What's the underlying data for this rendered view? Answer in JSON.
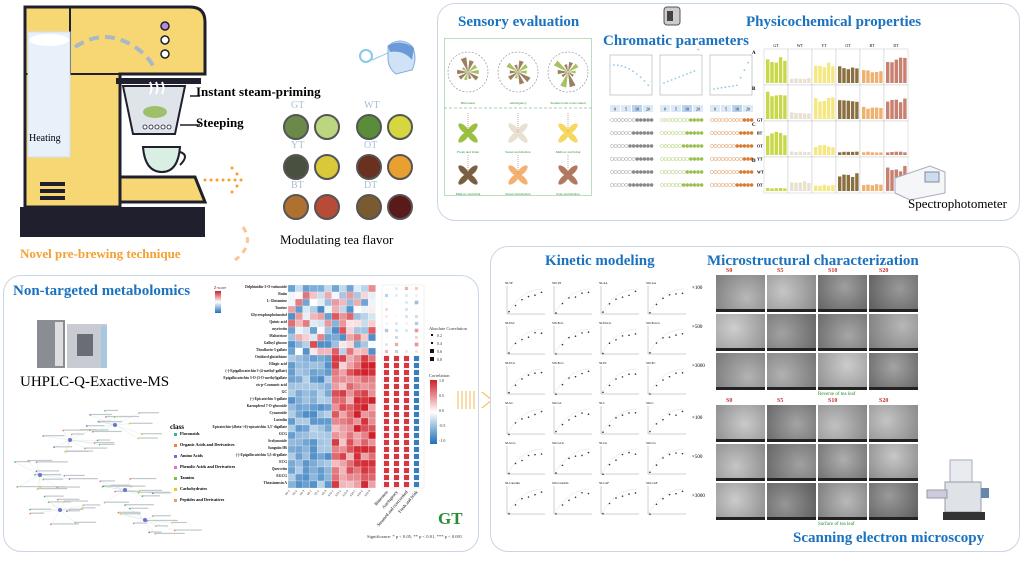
{
  "brewing": {
    "heating_label": "Heating",
    "steam_label": "Instant steam-priming",
    "steeping_label": "Steeping",
    "technique_label": "Novel pre-brewing technique",
    "colors": {
      "machine": "#f7d774",
      "outline": "#1f1f2e",
      "accent": "#f5a030"
    }
  },
  "teas": {
    "caption": "Modulating tea flavor",
    "items": [
      {
        "code": "GT",
        "leaf": "#6b8a4a",
        "liquor": "#bcd680"
      },
      {
        "code": "WT",
        "leaf": "#5a8d3a",
        "liquor": "#d6d640"
      },
      {
        "code": "YT",
        "leaf": "#4a5040",
        "liquor": "#d9c83a"
      },
      {
        "code": "OT",
        "leaf": "#6a3020",
        "liquor": "#e8a030"
      },
      {
        "code": "BT",
        "leaf": "#b07030",
        "liquor": "#b84a38"
      },
      {
        "code": "DT",
        "leaf": "#7a5a30",
        "liquor": "#5a1a1a"
      }
    ]
  },
  "sensory": {
    "title": "Sensory evaluation",
    "radar_labels": [
      "Bitterness",
      "Astringency",
      "Steamed and overcooked"
    ],
    "flower_labels": [
      "Fresh and brisk",
      "Sweet and mellow",
      "Mellow and brisk",
      "Mellow and brisk",
      "Sweet and mellow",
      "Sour and mellow"
    ]
  },
  "chromatic": {
    "title": "Chromatic parameters",
    "times": [
      "0",
      "5",
      "10",
      "20"
    ],
    "rows": [
      "GT",
      "BT",
      "OT",
      "YT",
      "WT",
      "DT"
    ]
  },
  "physicochemical": {
    "title": "Physicochemical properties",
    "teas": [
      "GT",
      "WT",
      "YT",
      "OT",
      "BT",
      "DT"
    ],
    "panels": [
      "A",
      "B",
      "C",
      "D"
    ],
    "instrument": "Spectrophotometer"
  },
  "metabolomics": {
    "title": "Non-targeted metabolomics",
    "instrument": "UHPLC-Q-Exactive-MS",
    "class_title": "class",
    "classes": [
      {
        "name": "Flavonoids",
        "color": "#3cb08a"
      },
      {
        "name": "Organic Acids and Derivatives",
        "color": "#f08040"
      },
      {
        "name": "Amino Acids",
        "color": "#7070d0"
      },
      {
        "name": "Phenolic Acids and Derivatives",
        "color": "#e070c0"
      },
      {
        "name": "Tannins",
        "color": "#80c040"
      },
      {
        "name": "Carbohydrates",
        "color": "#f0c020"
      },
      {
        "name": "Peptides and Derivatives",
        "color": "#e0a060"
      }
    ],
    "metabolites": [
      "Delphinidin-3-O-rutinoside",
      "Rutin",
      "L-Glutamine",
      "Taurine",
      "Glycerophosphoinositol",
      "Quinic acid",
      "myricetin",
      "Maltotriose",
      "Galloyl glucose",
      "Theaflavin-3-gallate",
      "Oxidized glutathione",
      "Ellagic acid",
      "(-)-Epigallocatechin 3-(4-methyl-gallate)",
      "Epigallocatechin 3-O-(3-O-methyl)gallate",
      "cis-p-Coumaric acid",
      "GC",
      "(-)-Epicatechin 3-gallate",
      "Kaempferol 7-O-glucoside",
      "Cynaroside",
      "Luteolin",
      "Epicatechin-(4beta->6)-epicatechin 3,3'-digallate",
      "GCG",
      "Scolymoside",
      "Sanguiin H6",
      "(-)-Epigallocatechin 3,5-di-gallate",
      "ECG",
      "Quercetin",
      "EGCG",
      "Theasinensin A"
    ],
    "attributes": [
      "Bitterness",
      "Astringency",
      "Steamed and overcooked",
      "Fresh and brisk"
    ],
    "zscore_label": "Z-score",
    "abs_corr_title": "Absolute Correlation",
    "abs_corr_values": [
      "0.2",
      "0.4",
      "0.6",
      "0.8"
    ],
    "corr_title": "Correlation",
    "corr_ticks": [
      "1.0",
      "0.5",
      "0.0",
      "-0.5",
      "-1.0"
    ],
    "tea_tag": "GT",
    "significance": "Significance: * p < 0.05, ** p < 0.01, *** p < 0.001"
  },
  "kinetic": {
    "title": "Kinetic modeling",
    "plots": [
      "S0-TP",
      "S20-TP",
      "S0-AA",
      "S20-AA",
      "S0-EGC",
      "S20-EGC",
      "S0-EGCG",
      "S20-EGCG",
      "S0-ECG",
      "S20-ECG",
      "S0-EC",
      "S20-EC",
      "S0-GC",
      "S20-GC",
      "S0-C",
      "S20-C",
      "S0-GCG",
      "S20-GCG",
      "S0-CG",
      "S20-CG",
      "S0-Catechin",
      "S20-Catechin",
      "S0-CAF",
      "S20-CAF"
    ]
  },
  "microstructure": {
    "title": "Microstructural characterization",
    "samples": [
      "S0",
      "S5",
      "S10",
      "S20"
    ],
    "magnifications": [
      "×100",
      "×500",
      "×3000"
    ],
    "reverse_caption": "Reverse of tea leaf",
    "surface_caption": "Surface of tea leaf",
    "instrument": "Scanning electron microscopy"
  }
}
